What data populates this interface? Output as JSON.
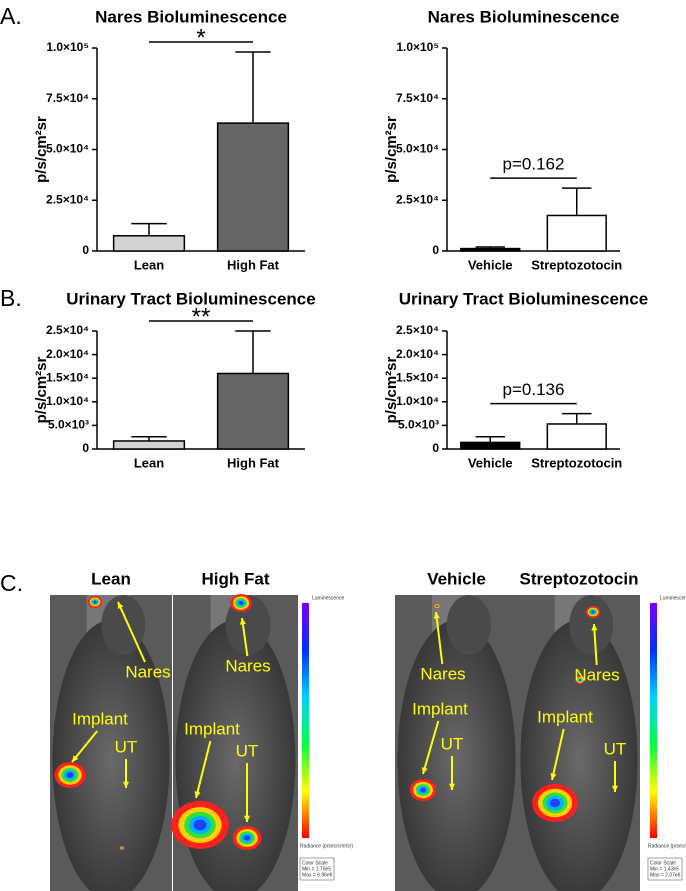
{
  "chart_data": [
    {
      "type": "bar",
      "title": "Nares Bioluminescence",
      "y_label": "p/s/cm²sr",
      "categories": [
        "Lean",
        "High Fat"
      ],
      "values": [
        7500,
        63000
      ],
      "errors": [
        6000,
        35000
      ],
      "colors": [
        "#d3d3d3",
        "#666666"
      ],
      "ylim": [
        0,
        100000
      ],
      "yticks": [
        0,
        {
          "value": 25000,
          "label": "2.5×10⁴"
        },
        {
          "value": 50000,
          "label": "5.0×10⁴"
        },
        {
          "value": 75000,
          "label": "7.5×10⁴"
        },
        {
          "value": 100000,
          "label": "1.0×10⁵"
        }
      ],
      "annotation": "*"
    },
    {
      "type": "bar",
      "title": "Nares Bioluminescence",
      "y_label": "p/s/cm²sr",
      "categories": [
        "Vehicle",
        "Streptozotocin"
      ],
      "values": [
        1200,
        17500
      ],
      "errors": [
        800,
        13500
      ],
      "colors": [
        "#000000",
        "#ffffff"
      ],
      "ylim": [
        0,
        100000
      ],
      "yticks": [
        0,
        {
          "value": 25000,
          "label": "2.5×10⁴"
        },
        {
          "value": 50000,
          "label": "5.0×10⁴"
        },
        {
          "value": 75000,
          "label": "7.5×10⁴"
        },
        {
          "value": 100000,
          "label": "1.0×10⁵"
        }
      ],
      "annotation": "p=0.162"
    },
    {
      "type": "bar",
      "title": "Urinary  Tract Bioluminescence",
      "y_label": "p/s/cm²sr",
      "categories": [
        "Lean",
        "High Fat"
      ],
      "values": [
        1700,
        16000
      ],
      "errors": [
        900,
        9000
      ],
      "colors": [
        "#d3d3d3",
        "#666666"
      ],
      "ylim": [
        0,
        25000
      ],
      "yticks": [
        0,
        {
          "value": 5000,
          "label": "5.0×10³"
        },
        {
          "value": 10000,
          "label": "1.0×10⁴"
        },
        {
          "value": 15000,
          "label": "1.5×10⁴"
        },
        {
          "value": 20000,
          "label": "2.0×10⁴"
        },
        {
          "value": 25000,
          "label": "2.5×10⁴"
        }
      ],
      "annotation": "**"
    },
    {
      "type": "bar",
      "title": "Urinary Tract Bioluminescence",
      "y_label": "p/s/cm²sr",
      "categories": [
        "Vehicle",
        "Streptozotocin"
      ],
      "values": [
        1400,
        5300
      ],
      "errors": [
        1200,
        2200
      ],
      "colors": [
        "#000000",
        "#ffffff"
      ],
      "ylim": [
        0,
        25000
      ],
      "yticks": [
        0,
        {
          "value": 5000,
          "label": "5.0×10³"
        },
        {
          "value": 10000,
          "label": "1.0×10⁴"
        },
        {
          "value": 15000,
          "label": "1.5×10⁴"
        },
        {
          "value": 20000,
          "label": "2.0×10⁴"
        },
        {
          "value": 25000,
          "label": "2.5×10⁴"
        }
      ],
      "annotation": "p=0.136"
    }
  ],
  "panel_labels": [
    "A.",
    "B.",
    "C."
  ],
  "image_panel": {
    "images": [
      {
        "title": "Lean",
        "labels": [
          "Nares",
          "Implant",
          "UT"
        ]
      },
      {
        "title": "High Fat",
        "labels": [
          "Nares",
          "Implant",
          "UT"
        ]
      },
      {
        "title": "Vehicle",
        "labels": [
          "Nares",
          "Implant",
          "UT"
        ]
      },
      {
        "title": "Streptozotocin",
        "labels": [
          "Nares",
          "Implant",
          "UT"
        ]
      }
    ],
    "scales": [
      {
        "title": "Luminescence",
        "unit": "Radiance (p/sec/cm²/sr)",
        "heading": "Color Scale",
        "min": "Min = 1.70e5",
        "max": "Max = 6.96e6"
      },
      {
        "title": "Luminescence",
        "unit": "Radiance (p/sec/cm²/sr)",
        "heading": "Color Scale",
        "min": "Min = 1.43e5",
        "max": "Max = 2.07e6"
      }
    ]
  }
}
